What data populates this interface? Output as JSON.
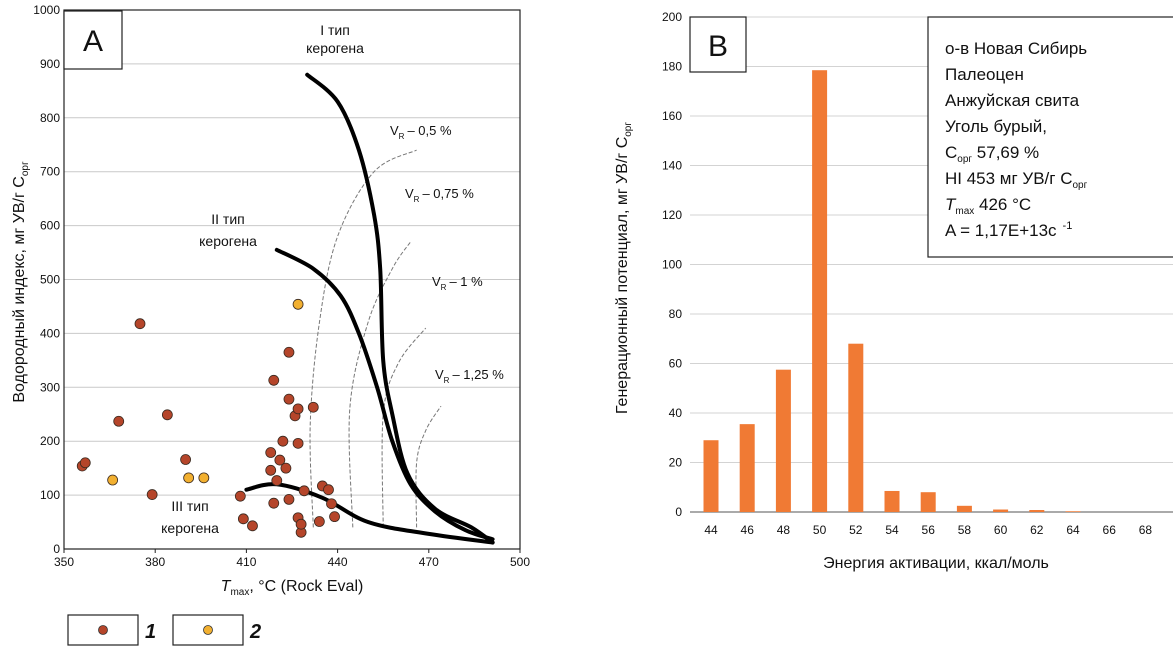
{
  "chart_data": [
    {
      "panel": "A",
      "type": "scatter",
      "xlabel_symbol": "T",
      "xlabel_sub": "max",
      "xlabel_rest": ", °C (Rock Eval)",
      "ylabel": "Водородный индекс, мг УВ/г С",
      "ylabel_sub": "орг",
      "xlim": [
        350,
        500
      ],
      "ylim": [
        0,
        1000
      ],
      "x_ticks": [
        350,
        380,
        410,
        440,
        470,
        500
      ],
      "y_ticks": [
        0,
        100,
        200,
        300,
        400,
        500,
        600,
        700,
        800,
        900,
        1000
      ],
      "grid": "horizontal",
      "series": [
        {
          "name": "1",
          "color": "#b5452a",
          "points": [
            [
              356,
              154
            ],
            [
              357,
              160
            ],
            [
              368,
              237
            ],
            [
              375,
              418
            ],
            [
              379,
              101
            ],
            [
              384,
              249
            ],
            [
              390,
              166
            ],
            [
              408,
              98
            ],
            [
              409,
              56
            ],
            [
              412,
              43
            ],
            [
              418,
              179
            ],
            [
              418,
              146
            ],
            [
              419,
              313
            ],
            [
              419,
              85
            ],
            [
              420,
              127
            ],
            [
              421,
              165
            ],
            [
              422,
              200
            ],
            [
              423,
              150
            ],
            [
              424,
              365
            ],
            [
              424,
              278
            ],
            [
              424,
              92
            ],
            [
              426,
              247
            ],
            [
              427,
              58
            ],
            [
              427,
              260
            ],
            [
              427,
              196
            ],
            [
              428,
              31
            ],
            [
              428,
              46
            ],
            [
              429,
              108
            ],
            [
              432,
              263
            ],
            [
              434,
              51
            ],
            [
              435,
              117
            ],
            [
              437,
              110
            ],
            [
              438,
              84
            ],
            [
              439,
              60
            ]
          ]
        },
        {
          "name": "2",
          "color": "#f2b030",
          "points": [
            [
              366,
              128
            ],
            [
              391,
              132
            ],
            [
              396,
              132
            ],
            [
              427,
              454
            ]
          ]
        }
      ],
      "curves": [
        {
          "label1": "I тип",
          "label2": "керогена",
          "points": [
            [
              430,
              880
            ],
            [
              440,
              830
            ],
            [
              447,
              740
            ],
            [
              452,
              620
            ],
            [
              454,
              520
            ],
            [
              455,
              350
            ],
            [
              458,
              250
            ],
            [
              463,
              140
            ],
            [
              472,
              75
            ],
            [
              484,
              40
            ],
            [
              491,
              12
            ]
          ]
        },
        {
          "label1": "II тип",
          "label2": "керогена",
          "points": [
            [
              420,
              555
            ],
            [
              432,
              520
            ],
            [
              441,
              470
            ],
            [
              447,
              400
            ],
            [
              453,
              300
            ],
            [
              458,
              200
            ],
            [
              464,
              120
            ],
            [
              472,
              70
            ],
            [
              482,
              35
            ],
            [
              491,
              18
            ]
          ]
        },
        {
          "label1": "III тип",
          "label2": "керогена",
          "points": [
            [
              410,
              110
            ],
            [
              420,
              120
            ],
            [
              435,
              95
            ],
            [
              450,
              50
            ],
            [
              470,
              28
            ],
            [
              491,
              12
            ]
          ]
        }
      ],
      "isolines": [
        {
          "label": "– 0,5 %",
          "points": [
            [
              432,
              40
            ],
            [
              431,
              230
            ],
            [
              434,
              420
            ],
            [
              440,
              580
            ],
            [
              452,
              700
            ],
            [
              466,
              740
            ]
          ]
        },
        {
          "label": "– 0,75 %",
          "points": [
            [
              445,
              40
            ],
            [
              444,
              260
            ],
            [
              450,
              420
            ],
            [
              458,
              520
            ],
            [
              464,
              570
            ]
          ]
        },
        {
          "label": "– 1 %",
          "points": [
            [
              455,
              40
            ],
            [
              455,
              250
            ],
            [
              460,
              345
            ],
            [
              469,
              410
            ]
          ]
        },
        {
          "label": "– 1,25 %",
          "points": [
            [
              466,
              40
            ],
            [
              466,
              160
            ],
            [
              469,
              220
            ],
            [
              474,
              265
            ]
          ]
        }
      ],
      "isoline_prefix": "V",
      "isoline_sub": "R",
      "legend": [
        {
          "number": "1",
          "color": "#b5452a"
        },
        {
          "number": "2",
          "color": "#f2b030"
        }
      ]
    },
    {
      "panel": "B",
      "type": "bar",
      "xlabel": "Энергия активации, ккал/моль",
      "ylabel": "Генерационный потенциал, мг УВ/г С",
      "ylabel_sub": "орг",
      "categories": [
        44,
        46,
        48,
        50,
        52,
        54,
        56,
        58,
        60,
        62,
        64,
        66,
        68
      ],
      "values": [
        29,
        35.5,
        57.5,
        178.5,
        68,
        8.5,
        8,
        2.5,
        1,
        0.8,
        0.3,
        0,
        0
      ],
      "ylim": [
        0,
        200
      ],
      "y_ticks": [
        0,
        20,
        40,
        60,
        80,
        100,
        120,
        140,
        160,
        180,
        200
      ],
      "grid": "horizontal",
      "color": "#f07a34",
      "info": {
        "line1": "о-в Новая Сибирь",
        "line2": "Палеоцен",
        "line3": "Анжуйская свита",
        "line4": "Уголь бурый,",
        "line5_main": "С",
        "line5_sub": "орг",
        "line5_rest": " 57,69 %",
        "line6_main": "HI  453 мг УВ/г С",
        "line6_sub": "орг",
        "line7_main": "T",
        "line7_sub": "max",
        "line7_rest": " 426 °C",
        "line8_main": "A = 1,17E+13c",
        "line8_sup": "-1"
      }
    }
  ]
}
